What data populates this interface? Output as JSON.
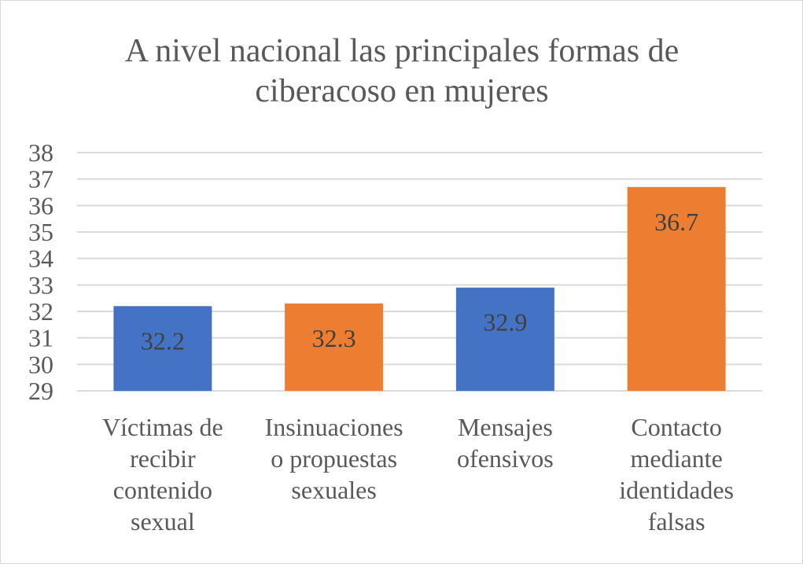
{
  "chart_data": {
    "type": "bar",
    "title_lines": [
      "A nivel nacional las principales formas de",
      "ciberacoso en mujeres"
    ],
    "categories": [
      [
        "Víctimas de",
        "recibir",
        "contenido",
        "sexual"
      ],
      [
        "Insinuaciones",
        "o propuestas",
        "sexuales"
      ],
      [
        "Mensajes",
        "ofensivos"
      ],
      [
        "Contacto",
        "mediante",
        "identidades",
        "falsas"
      ]
    ],
    "values": [
      32.2,
      32.3,
      32.9,
      36.7
    ],
    "data_labels": [
      "32.2",
      "32.3",
      "32.9",
      "36.7"
    ],
    "bar_colors": [
      "#4472c4",
      "#ed7d31",
      "#4472c4",
      "#ed7d31"
    ],
    "ylim": [
      29,
      38
    ],
    "yticks": [
      29,
      30,
      31,
      32,
      33,
      34,
      35,
      36,
      37,
      38
    ],
    "grid": true,
    "legend": "none"
  }
}
